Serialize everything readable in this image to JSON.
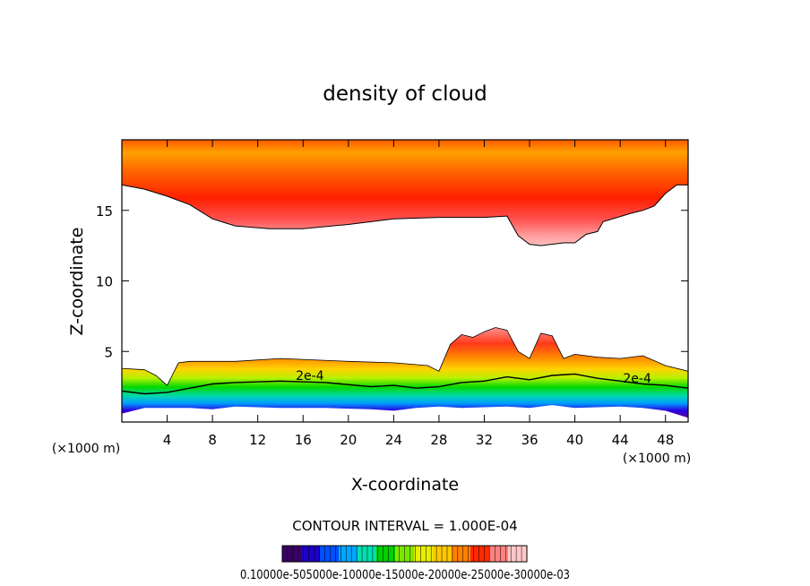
{
  "chart_data": {
    "type": "heatmap",
    "title": "density of cloud",
    "xlabel": "X-coordinate",
    "ylabel": "Z-coordinate",
    "x_unit": "(×1000 m)",
    "y_unit": "(×1000 m)",
    "xlim": [
      0,
      50
    ],
    "ylim": [
      0,
      20
    ],
    "x_ticks": [
      4,
      8,
      12,
      16,
      20,
      24,
      28,
      32,
      36,
      40,
      44,
      48
    ],
    "y_ticks": [
      5,
      10,
      15
    ],
    "contour_label": "2e-4",
    "contour_interval": "CONTOUR INTERVAL = 1.000E-04",
    "colorbar_labels": "0.10000e-505000e-10000e-15000e-20000e-25000e-30000e-03",
    "upper_layer_base": [
      [
        0,
        16.8
      ],
      [
        2,
        16.5
      ],
      [
        4,
        16
      ],
      [
        6,
        15.4
      ],
      [
        8,
        14.4
      ],
      [
        10,
        13.9
      ],
      [
        13,
        13.7
      ],
      [
        16,
        13.7
      ],
      [
        20,
        14
      ],
      [
        24,
        14.4
      ],
      [
        28,
        14.5
      ],
      [
        32,
        14.5
      ],
      [
        34,
        14.6
      ],
      [
        35,
        13.2
      ],
      [
        36,
        12.6
      ],
      [
        37,
        12.5
      ],
      [
        39,
        12.7
      ],
      [
        40,
        12.7
      ],
      [
        41,
        13.3
      ],
      [
        42,
        13.5
      ],
      [
        42.5,
        14.2
      ],
      [
        45,
        14.8
      ],
      [
        46,
        15
      ],
      [
        47,
        15.3
      ],
      [
        48,
        16.2
      ],
      [
        49,
        16.8
      ],
      [
        50,
        16.8
      ]
    ],
    "lower_layer_top": [
      [
        0,
        3.8
      ],
      [
        2,
        3.7
      ],
      [
        3,
        3.3
      ],
      [
        4,
        2.6
      ],
      [
        5,
        4.2
      ],
      [
        6,
        4.3
      ],
      [
        8,
        4.3
      ],
      [
        10,
        4.3
      ],
      [
        14,
        4.5
      ],
      [
        20,
        4.3
      ],
      [
        24,
        4.2
      ],
      [
        27,
        4
      ],
      [
        28,
        3.6
      ],
      [
        29,
        5.5
      ],
      [
        30,
        6.2
      ],
      [
        31,
        6
      ],
      [
        32,
        6.4
      ],
      [
        33,
        6.7
      ],
      [
        34,
        6.5
      ],
      [
        35,
        5
      ],
      [
        36,
        4.5
      ],
      [
        37,
        6.3
      ],
      [
        38,
        6.1
      ],
      [
        39,
        4.5
      ],
      [
        40,
        4.8
      ],
      [
        42,
        4.6
      ],
      [
        44,
        4.5
      ],
      [
        46,
        4.7
      ],
      [
        48,
        4
      ],
      [
        50,
        3.6
      ]
    ],
    "contour_2e4": [
      [
        0,
        2.2
      ],
      [
        2,
        2
      ],
      [
        4,
        2.1
      ],
      [
        6,
        2.4
      ],
      [
        8,
        2.7
      ],
      [
        10,
        2.8
      ],
      [
        14,
        2.9
      ],
      [
        18,
        2.8
      ],
      [
        22,
        2.5
      ],
      [
        24,
        2.6
      ],
      [
        26,
        2.4
      ],
      [
        28,
        2.5
      ],
      [
        30,
        2.8
      ],
      [
        32,
        2.9
      ],
      [
        34,
        3.2
      ],
      [
        36,
        3
      ],
      [
        38,
        3.3
      ],
      [
        40,
        3.4
      ],
      [
        42,
        3.1
      ],
      [
        44,
        2.9
      ],
      [
        46,
        2.7
      ],
      [
        48,
        2.6
      ],
      [
        50,
        2.4
      ]
    ],
    "lower_layer_base": [
      [
        0,
        0.6
      ],
      [
        2,
        1
      ],
      [
        4,
        1
      ],
      [
        6,
        1
      ],
      [
        8,
        0.9
      ],
      [
        10,
        1.1
      ],
      [
        14,
        1
      ],
      [
        18,
        1
      ],
      [
        22,
        0.9
      ],
      [
        24,
        0.8
      ],
      [
        26,
        1
      ],
      [
        28,
        1.1
      ],
      [
        30,
        1
      ],
      [
        34,
        1.1
      ],
      [
        36,
        1
      ],
      [
        38,
        1.2
      ],
      [
        40,
        1
      ],
      [
        44,
        1.1
      ],
      [
        46,
        1
      ],
      [
        48,
        0.8
      ],
      [
        50,
        0.3
      ]
    ],
    "color_scale": [
      "#3a0066",
      "#1f00c8",
      "#0050ff",
      "#00a8ff",
      "#00e0b0",
      "#00d000",
      "#7ce800",
      "#e8f000",
      "#ffc800",
      "#ff8000",
      "#ff2a00",
      "#ff8080",
      "#ffc8c8"
    ]
  }
}
